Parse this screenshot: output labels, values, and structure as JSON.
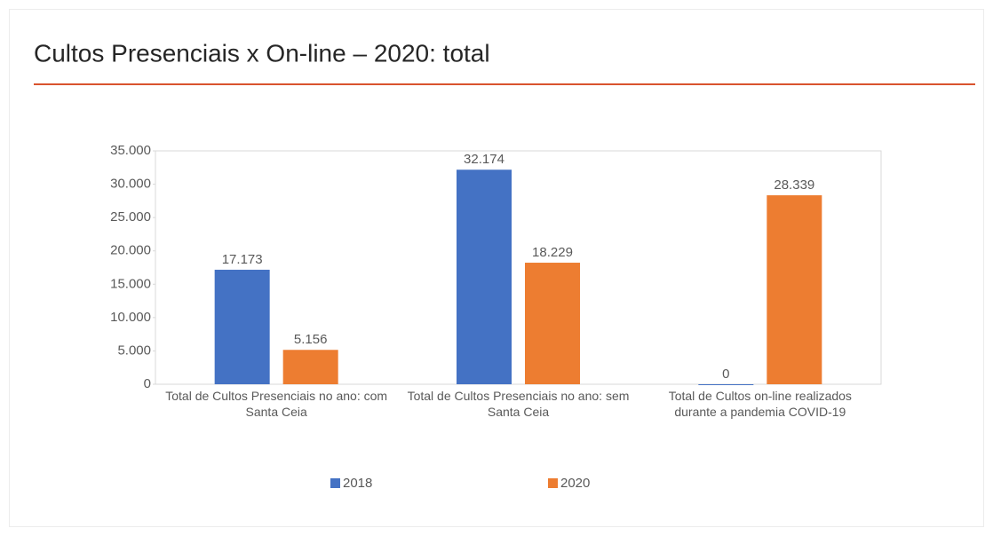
{
  "chart_data": {
    "type": "bar",
    "title": "Cultos Presenciais x On-line – 2020: total",
    "categories": [
      "Total de Cultos Presenciais no ano: com Santa Ceia",
      "Total de Cultos Presenciais no ano: sem Santa Ceia",
      "Total de Cultos on-line realizados durante a pandemia COVID-19"
    ],
    "series": [
      {
        "name": "2018",
        "color": "#4472c4",
        "values": [
          17173,
          32174,
          0
        ],
        "value_labels": [
          "17.173",
          "32.174",
          "0"
        ]
      },
      {
        "name": "2020",
        "color": "#ed7d31",
        "values": [
          5156,
          18229,
          28339
        ],
        "value_labels": [
          "5.156",
          "18.229",
          "28.339"
        ]
      }
    ],
    "ylim": [
      0,
      35000
    ],
    "yticks": [
      0,
      {
        "value": 5000,
        "label": "5.000"
      },
      {
        "value": 10000,
        "label": "10.000"
      },
      {
        "value": 15000,
        "label": "15.000"
      },
      {
        "value": 20000,
        "label": "20.000"
      },
      {
        "value": 25000,
        "label": "25.000"
      },
      {
        "value": 30000,
        "label": "30.000"
      },
      {
        "value": 35000,
        "label": "35.000"
      }
    ],
    "legend": "bottom"
  }
}
